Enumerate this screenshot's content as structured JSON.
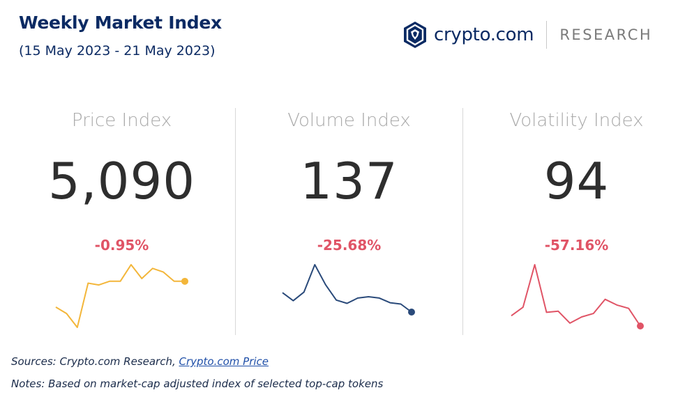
{
  "header": {
    "title": "Weekly Market Index",
    "subtitle": "(15 May 2023 - 21 May 2023)",
    "brand": "crypto.com",
    "brand_tag": "RESEARCH"
  },
  "colors": {
    "price": "#f3b63a",
    "volume": "#2a4a7a",
    "volatility": "#e05466"
  },
  "chart_data": [
    {
      "type": "line",
      "title": "Price Index",
      "value": "5,090",
      "change": "-0.95%",
      "series": [
        {
          "values": [
            5122,
            5115,
            5100,
            5148,
            5146,
            5150,
            5150,
            5168,
            5153,
            5164,
            5160,
            5150,
            5150
          ]
        }
      ]
    },
    {
      "type": "line",
      "title": "Volume Index",
      "value": "137",
      "change": "-25.68%",
      "series": [
        {
          "values": [
            175,
            163,
            176,
            217,
            187,
            164,
            159,
            167,
            169,
            167,
            160,
            158,
            146
          ]
        }
      ]
    },
    {
      "type": "line",
      "title": "Volatility Index",
      "value": "94",
      "change": "-57.16%",
      "series": [
        {
          "values": [
            104,
            119,
            194,
            110,
            112,
            91,
            102,
            108,
            133,
            123,
            117,
            86
          ]
        }
      ]
    }
  ],
  "footer": {
    "sources_prefix": "Sources: Crypto.com Research, ",
    "sources_link": "Crypto.com Price",
    "notes": "Notes: Based on market-cap adjusted index of selected top-cap tokens"
  }
}
